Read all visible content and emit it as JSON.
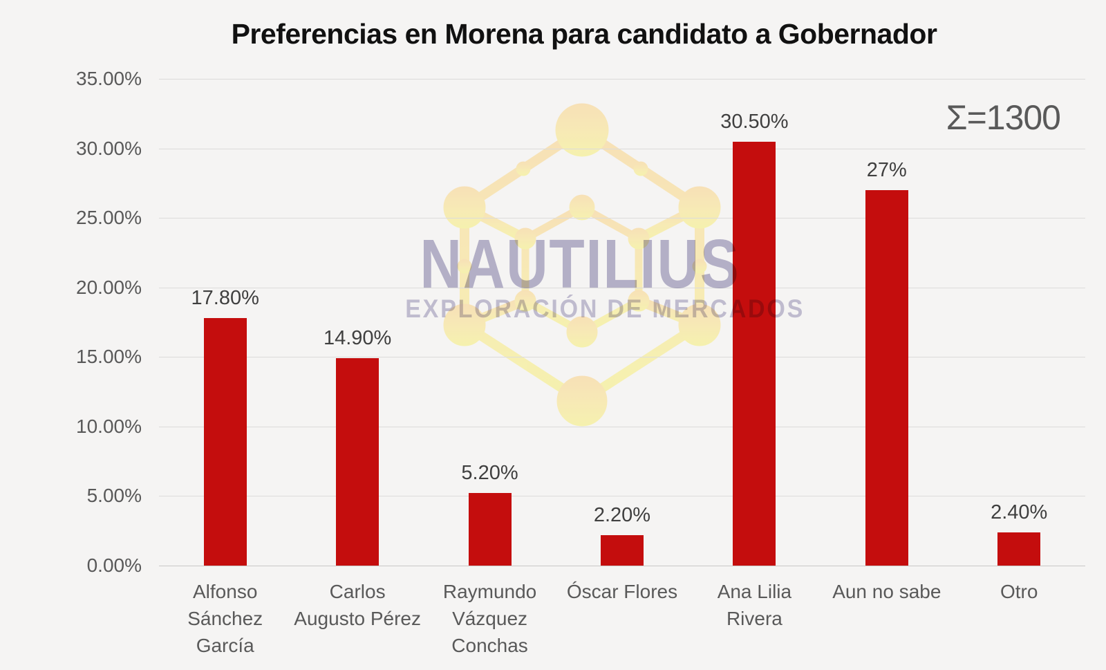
{
  "annotation": {
    "sigma": "Σ=1300"
  },
  "watermark": {
    "brand": "NAUTILIUS",
    "tagline": "EXPLORACIÓN DE MERCADOS"
  },
  "colors": {
    "background": "#f5f4f3",
    "bar": "#c40d0d",
    "gridline": "#dcdbda",
    "axis_text": "#595959",
    "label_text": "#3f3f3f",
    "watermark_text": "#b7b4ce",
    "watermark_tagline": "#c4c1d7",
    "molecule_top": "#f8dca8",
    "molecule_bottom": "#f6f19e"
  },
  "chart_data": {
    "type": "bar",
    "title": "Preferencias en Morena para candidato a Gobernador",
    "xlabel": "",
    "ylabel": "",
    "categories": [
      "Alfonso Sánchez García",
      "Carlos Augusto Pérez",
      "Raymundo Vázquez Conchas",
      "Óscar Flores",
      "Ana Lilia Rivera",
      "Aun no sabe",
      "Otro"
    ],
    "categories_display": [
      "Alfonso\nSánchez\nGarcía",
      "Carlos\nAugusto Pérez",
      "Raymundo\nVázquez\nConchas",
      "Óscar Flores",
      "Ana Lilia\nRivera",
      "Aun no sabe",
      "Otro"
    ],
    "values": [
      17.8,
      14.9,
      5.2,
      2.2,
      30.5,
      27,
      2.4
    ],
    "value_labels": [
      "17.80%",
      "14.90%",
      "5.20%",
      "2.20%",
      "30.50%",
      "27%",
      "2.40%"
    ],
    "yticks_desc": [
      "35.00%",
      "30.00%",
      "25.00%",
      "20.00%",
      "15.00%",
      "10.00%",
      "5.00%",
      "0.00%"
    ],
    "ylim": [
      0,
      35
    ],
    "grid": true,
    "legend": false,
    "annotation": "Σ=1300",
    "sample_size": 1300
  }
}
